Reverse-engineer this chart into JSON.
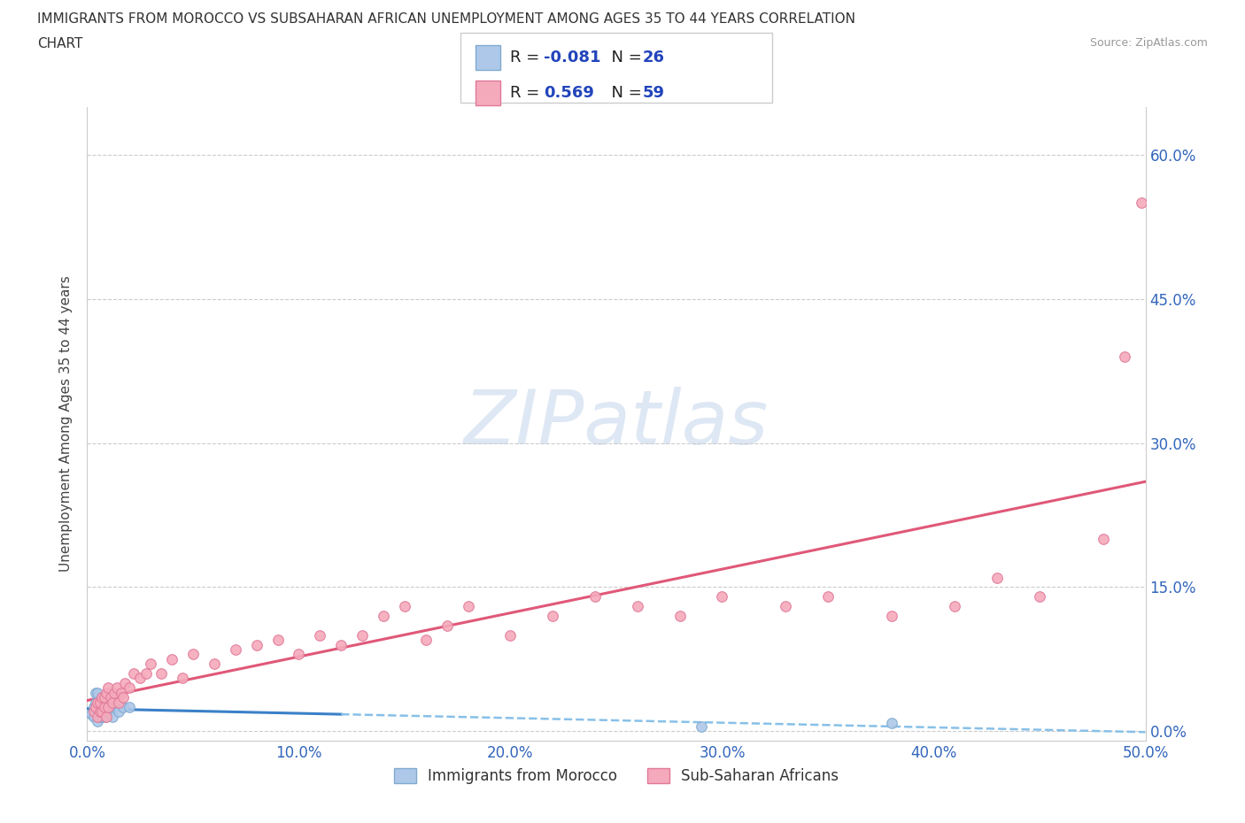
{
  "title_line1": "IMMIGRANTS FROM MOROCCO VS SUBSAHARAN AFRICAN UNEMPLOYMENT AMONG AGES 35 TO 44 YEARS CORRELATION",
  "title_line2": "CHART",
  "source": "Source: ZipAtlas.com",
  "ylabel": "Unemployment Among Ages 35 to 44 years",
  "xlim": [
    0.0,
    0.5
  ],
  "ylim": [
    -0.01,
    0.65
  ],
  "xticks": [
    0.0,
    0.1,
    0.2,
    0.3,
    0.4,
    0.5
  ],
  "xticklabels": [
    "0.0%",
    "10.0%",
    "20.0%",
    "30.0%",
    "40.0%",
    "50.0%"
  ],
  "yticks": [
    0.0,
    0.15,
    0.3,
    0.45,
    0.6
  ],
  "yticklabels": [
    "0.0%",
    "15.0%",
    "30.0%",
    "45.0%",
    "60.0%"
  ],
  "morocco_color": "#adc8e8",
  "morocco_edge_color": "#80aad0",
  "subsaharan_color": "#f5aabb",
  "subsaharan_edge_color": "#e07898",
  "trendline_morocco_solid_color": "#3a80c8",
  "trendline_morocco_dash_color": "#88c0e8",
  "trendline_subsaharan_color": "#e05878",
  "R_morocco": -0.081,
  "N_morocco": 26,
  "R_subsaharan": 0.569,
  "N_subsaharan": 59,
  "watermark_text": "ZIPatlas",
  "watermark_color": "#c8d8ee",
  "legend_label_morocco": "Immigrants from Morocco",
  "legend_label_subsaharan": "Sub-Saharan Africans",
  "morocco_x": [
    0.002,
    0.003,
    0.003,
    0.004,
    0.004,
    0.004,
    0.005,
    0.005,
    0.005,
    0.006,
    0.006,
    0.007,
    0.007,
    0.008,
    0.008,
    0.009,
    0.01,
    0.01,
    0.011,
    0.012,
    0.013,
    0.015,
    0.017,
    0.02,
    0.29,
    0.38
  ],
  "morocco_y": [
    0.018,
    0.015,
    0.025,
    0.02,
    0.03,
    0.04,
    0.01,
    0.02,
    0.04,
    0.015,
    0.025,
    0.015,
    0.035,
    0.015,
    0.025,
    0.02,
    0.02,
    0.03,
    0.025,
    0.015,
    0.025,
    0.02,
    0.025,
    0.025,
    0.005,
    0.008
  ],
  "subsaharan_x": [
    0.003,
    0.004,
    0.005,
    0.005,
    0.006,
    0.006,
    0.007,
    0.007,
    0.008,
    0.008,
    0.009,
    0.009,
    0.01,
    0.01,
    0.011,
    0.012,
    0.013,
    0.014,
    0.015,
    0.016,
    0.017,
    0.018,
    0.02,
    0.022,
    0.025,
    0.028,
    0.03,
    0.035,
    0.04,
    0.045,
    0.05,
    0.06,
    0.07,
    0.08,
    0.09,
    0.1,
    0.11,
    0.12,
    0.13,
    0.14,
    0.15,
    0.16,
    0.17,
    0.18,
    0.2,
    0.22,
    0.24,
    0.26,
    0.28,
    0.3,
    0.33,
    0.35,
    0.38,
    0.41,
    0.43,
    0.45,
    0.48,
    0.49,
    0.498
  ],
  "subsaharan_y": [
    0.02,
    0.025,
    0.015,
    0.03,
    0.02,
    0.03,
    0.02,
    0.035,
    0.025,
    0.035,
    0.015,
    0.04,
    0.025,
    0.045,
    0.035,
    0.03,
    0.04,
    0.045,
    0.03,
    0.04,
    0.035,
    0.05,
    0.045,
    0.06,
    0.055,
    0.06,
    0.07,
    0.06,
    0.075,
    0.055,
    0.08,
    0.07,
    0.085,
    0.09,
    0.095,
    0.08,
    0.1,
    0.09,
    0.1,
    0.12,
    0.13,
    0.095,
    0.11,
    0.13,
    0.1,
    0.12,
    0.14,
    0.13,
    0.12,
    0.14,
    0.13,
    0.14,
    0.12,
    0.13,
    0.16,
    0.14,
    0.2,
    0.39,
    0.55
  ],
  "trendline_morocco_slope": -0.04,
  "trendline_morocco_intercept": 0.025,
  "trendline_subsaharan_slope": 0.5,
  "trendline_subsaharan_intercept": 0.015
}
